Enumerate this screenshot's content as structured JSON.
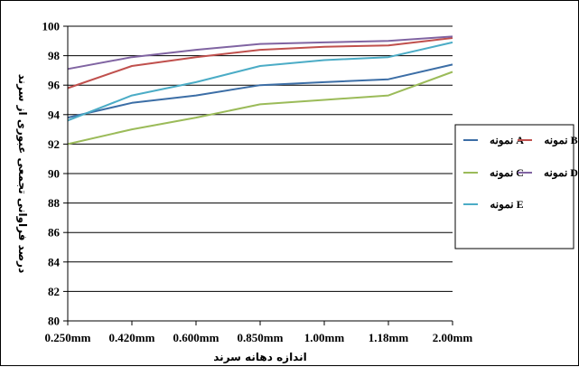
{
  "chart_data": {
    "type": "line",
    "title": "",
    "xlabel": "اندازه دهانه سرند",
    "ylabel": "درصد فراوانی تجمعی عبوری از سرند",
    "categories": [
      "0.250mm",
      "0.420mm",
      "0.600mm",
      "0.850mm",
      "1.00mm",
      "1.18mm",
      "2.00mm"
    ],
    "ylim": [
      80,
      100
    ],
    "yticks": [
      "80",
      "82",
      "84",
      "86",
      "88",
      "90",
      "92",
      "94",
      "96",
      "98",
      "100"
    ],
    "grid": true,
    "legend_position": "right",
    "series": [
      {
        "name": "نمونه A",
        "color": "#3c6ea6",
        "values": [
          93.8,
          94.8,
          95.3,
          96.0,
          96.2,
          96.4,
          97.4
        ]
      },
      {
        "name": "نمونه B",
        "color": "#c0504d",
        "values": [
          95.8,
          97.3,
          97.9,
          98.4,
          98.6,
          98.7,
          99.2
        ]
      },
      {
        "name": "نمونه C",
        "color": "#9bbb59",
        "values": [
          92.0,
          93.0,
          93.8,
          94.7,
          95.0,
          95.3,
          96.9
        ]
      },
      {
        "name": "نمونه D",
        "color": "#8064a2",
        "values": [
          97.1,
          97.9,
          98.4,
          98.8,
          98.9,
          99.0,
          99.3
        ]
      },
      {
        "name": "نمونه E",
        "color": "#4bacc6",
        "values": [
          93.6,
          95.3,
          96.2,
          97.3,
          97.7,
          97.9,
          98.9
        ]
      }
    ]
  }
}
